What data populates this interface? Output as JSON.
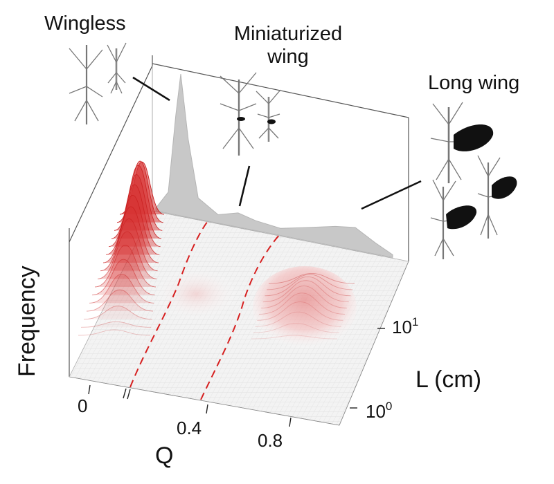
{
  "chart_data": {
    "type": "surface",
    "categories": [
      "Wingless",
      "Miniaturized wing",
      "Long wing"
    ],
    "category_labels": {
      "wingless": "Wingless",
      "mini_line1": "Miniaturized",
      "mini_line2": "wing",
      "long": "Long wing"
    },
    "xlabel": "Q",
    "ylabel": "L (cm)",
    "zlabel": "Frequency",
    "x_ticks": [
      "0",
      "0.4",
      "0.8"
    ],
    "y_ticks": {
      "low_base": "10",
      "low_exp": "0",
      "high_base": "10",
      "high_exp": "1"
    },
    "y_scale": "log",
    "marginal_profile_Q": [
      {
        "Q": 0.0,
        "freq": 0.02
      },
      {
        "Q": 0.05,
        "freq": 0.15
      },
      {
        "Q": 0.08,
        "freq": 0.7
      },
      {
        "Q": 0.1,
        "freq": 1.0
      },
      {
        "Q": 0.13,
        "freq": 0.55
      },
      {
        "Q": 0.17,
        "freq": 0.15
      },
      {
        "Q": 0.25,
        "freq": 0.06
      },
      {
        "Q": 0.33,
        "freq": 0.1
      },
      {
        "Q": 0.4,
        "freq": 0.07
      },
      {
        "Q": 0.5,
        "freq": 0.05
      },
      {
        "Q": 0.6,
        "freq": 0.09
      },
      {
        "Q": 0.72,
        "freq": 0.14
      },
      {
        "Q": 0.8,
        "freq": 0.16
      },
      {
        "Q": 0.88,
        "freq": 0.08
      },
      {
        "Q": 0.95,
        "freq": 0.02
      }
    ],
    "dashed_boundaries_Q": [
      0.2,
      0.45
    ],
    "colors": {
      "surface_peak": "#d42b2b",
      "marginal_fill": "#c9c9c9",
      "boundary": "#d61f1f"
    }
  }
}
